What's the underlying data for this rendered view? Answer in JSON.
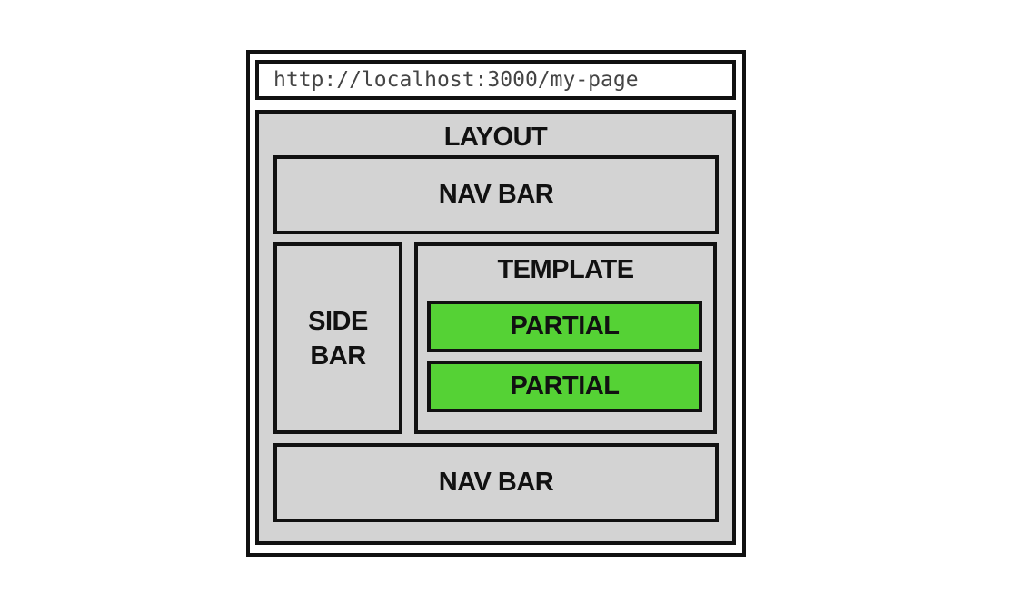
{
  "url": "http://localhost:3000/my-page",
  "layout": {
    "title": "LAYOUT",
    "nav_top_label": "NAV BAR",
    "sidebar_line1": "SIDE",
    "sidebar_line2": "BAR",
    "template": {
      "title": "TEMPLATE",
      "partials": [
        "PARTIAL",
        "PARTIAL"
      ]
    },
    "nav_bottom_label": "NAV BAR"
  },
  "colors": {
    "box_fill": "#d3d3d3",
    "partial_fill": "#55d235",
    "border": "#111111"
  }
}
